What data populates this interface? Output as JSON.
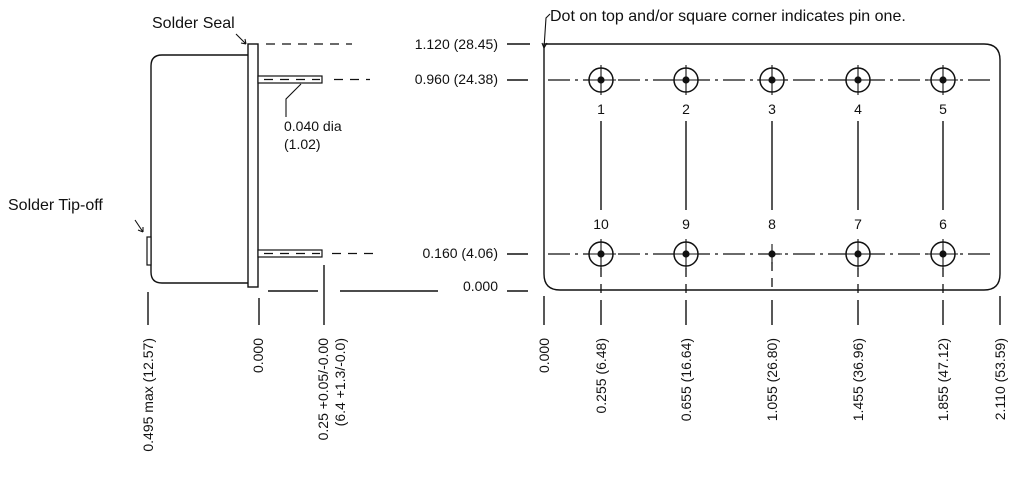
{
  "callouts": {
    "solder_seal": "Solder Seal",
    "solder_tipoff": "Solder Tip-off",
    "pin_dia": "0.040 dia",
    "pin_dia_mm": "(1.02)",
    "pin_one_note": "Dot on top and/or square corner indicates pin one."
  },
  "vertical_dims": {
    "top": "1.120 (28.45)",
    "upper_row": "0.960 (24.38)",
    "lower_row": "0.160 (4.06)",
    "base": "0.000"
  },
  "side_dims": {
    "case_depth": "0.495 max (12.57)",
    "flange_zero": "0.000",
    "pin_length": "0.25 +0.05/-0.00",
    "pin_length_mm": "(6.4 +1.3/-0.0)"
  },
  "horizontal_dims": [
    "0.000",
    "0.255 (6.48)",
    "0.655 (16.64)",
    "1.055 (26.80)",
    "1.455 (36.96)",
    "1.855 (47.12)",
    "2.110 (53.59)"
  ],
  "pins": {
    "top_row": [
      "1",
      "2",
      "3",
      "4",
      "5"
    ],
    "bottom_row": [
      "10",
      "9",
      "8",
      "7",
      "6"
    ]
  }
}
